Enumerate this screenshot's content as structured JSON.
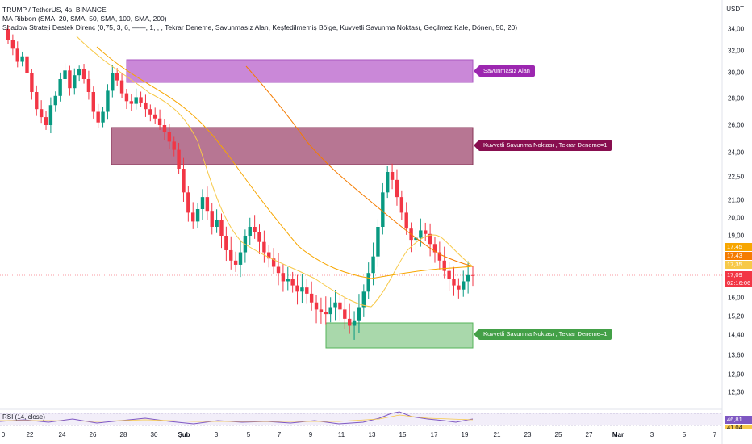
{
  "legend": {
    "symbol": "TRUMP / TetherUS, 4s, BINANCE",
    "ma_ribbon": "MA Ribbon (SMA, 20, SMA, 50, SMA, 100, SMA, 200)",
    "shadow": "Shadow Strateji Destek Direnç (0,75, 3, 6, ——, 1, , , Tekrar Deneme, Savunmasız Alan, Keşfedilmemiş Bölge, Kuvvetli Savunma Noktası, Geçilmez Kale, Dönen, 50, 20)"
  },
  "currency": "USDT",
  "y_axis": [
    "34,00",
    "32,00",
    "30,00",
    "28,00",
    "26,00",
    "24,00",
    "22,50",
    "21,00",
    "20,00",
    "19,00",
    "16,00",
    "15,20",
    "14,40",
    "13,60",
    "12,90",
    "12,30"
  ],
  "price_tags": [
    {
      "text": "17,45",
      "color": "#f7a600"
    },
    {
      "text": "17,43",
      "color": "#f57c00"
    },
    {
      "text": "17,35",
      "color": "#f7c948"
    },
    {
      "text": "17,09",
      "color": "#f23645"
    },
    {
      "text": "02:16:06",
      "color": "#f23645"
    }
  ],
  "x_axis": [
    "0",
    "22",
    "24",
    "26",
    "28",
    "30",
    "Şub",
    "3",
    "5",
    "7",
    "9",
    "11",
    "13",
    "15",
    "17",
    "19",
    "21",
    "23",
    "25",
    "27",
    "Mar",
    "3",
    "5",
    "7"
  ],
  "x_axis_bold": [
    "Şub",
    "Mar"
  ],
  "zones": [
    {
      "label": "Savunmasız Alan",
      "fill": "#c882d6",
      "stroke": "#a64dbd",
      "tag": "#9c27b0"
    },
    {
      "label": "Kuvvetli Savunma Noktası , Tekrar Deneme=1",
      "fill": "#b06888",
      "stroke": "#7b1f45",
      "tag": "#880e4f"
    },
    {
      "label": "Kuvvetli Savunma Noktası , Tekrar Deneme=1",
      "fill": "#a5d6a7",
      "stroke": "#4caf50",
      "tag": "#43a047"
    }
  ],
  "rsi": {
    "label": "RSI (14, close)",
    "value": "46,81",
    "value2": "41,04"
  },
  "chart_data": {
    "type": "candlestick",
    "pair": "TRUMP / TetherUS",
    "last_price": 17.09,
    "closes": [
      33.0,
      32.2,
      31.0,
      31.5,
      30.0,
      28.5,
      27.2,
      26.6,
      26.0,
      27.5,
      28.2,
      29.5,
      30.2,
      28.8,
      29.8,
      30.3,
      29.5,
      28.5,
      27.0,
      26.2,
      27.0,
      28.6,
      30.0,
      29.4,
      28.4,
      27.8,
      27.6,
      28.1,
      27.7,
      27.2,
      26.8,
      26.5,
      26.0,
      25.5,
      24.8,
      24.2,
      23.0,
      21.5,
      20.3,
      19.8,
      20.5,
      21.2,
      20.4,
      19.5,
      19.9,
      19.0,
      18.3,
      17.8,
      17.6,
      18.2,
      19.0,
      19.5,
      19.2,
      18.7,
      18.2,
      17.9,
      17.5,
      17.2,
      16.8,
      16.9,
      16.6,
      16.3,
      16.5,
      16.2,
      15.8,
      15.5,
      15.4,
      15.3,
      15.6,
      15.8,
      15.5,
      15.1,
      14.8,
      15.0,
      15.6,
      16.3,
      17.2,
      18.0,
      19.5,
      21.5,
      22.8,
      22.3,
      21.2,
      20.3,
      19.4,
      18.8,
      18.9,
      19.3,
      19.1,
      18.6,
      18.2,
      17.8,
      17.3,
      16.9,
      16.6,
      16.4,
      16.8,
      17.1,
      17.09
    ],
    "zones": [
      {
        "name": "Savunmasız Alan",
        "low": 29.3,
        "high": 31.1
      },
      {
        "name": "Kuvvetli Savunma Noktası , Tekrar Deneme=1",
        "low": 23.2,
        "high": 25.9
      },
      {
        "name": "Kuvvetli Savunma Noktası , Tekrar Deneme=1",
        "low": 13.8,
        "high": 14.9
      }
    ]
  }
}
